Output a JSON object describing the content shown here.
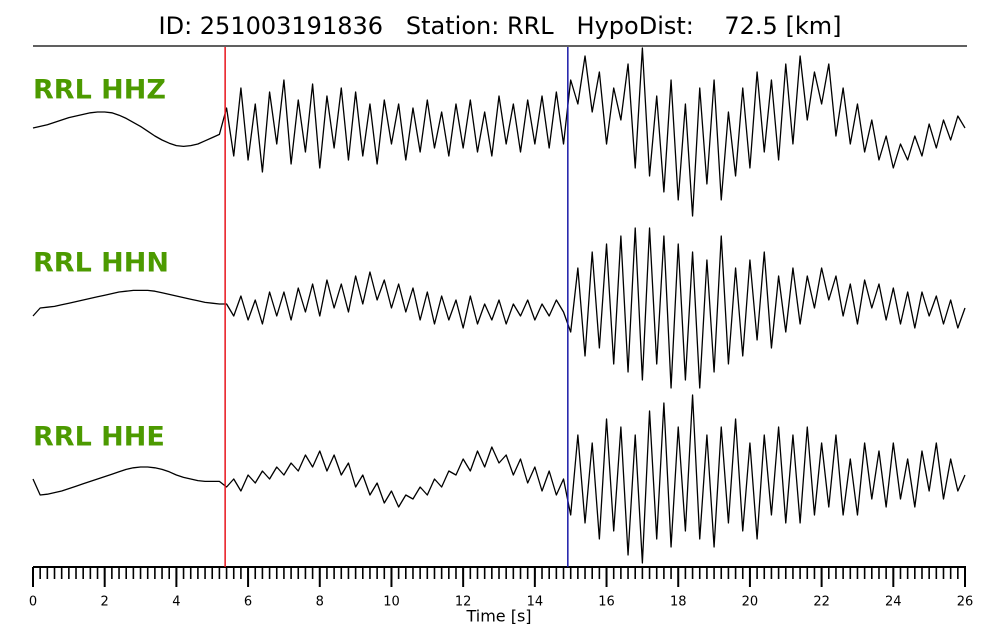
{
  "chart_data": {
    "type": "line",
    "title": "ID: 251003191836   Station: RRL   HypoDist:    72.5 [km]",
    "x_label": "Time [s]",
    "xlim": [
      0,
      26
    ],
    "xticks": [
      0,
      2,
      4,
      6,
      8,
      10,
      12,
      14,
      16,
      18,
      20,
      22,
      24,
      26
    ],
    "xminorticks": [
      0,
      0.2,
      0.4,
      0.6,
      0.8,
      1,
      1.2,
      1.4,
      1.6,
      1.8,
      2,
      2.2,
      2.4,
      2.6,
      2.8,
      3,
      3.2,
      3.4,
      3.6,
      3.8,
      4,
      4.2,
      4.4,
      4.6,
      4.8,
      5,
      5.2,
      5.4,
      5.6,
      5.8,
      6,
      6.2,
      6.4,
      6.6,
      6.8,
      7,
      7.2,
      7.4,
      7.6,
      7.8,
      8,
      8.2,
      8.4,
      8.6,
      8.8,
      9,
      9.2,
      9.4,
      9.6,
      9.8,
      10,
      10.2,
      10.4,
      10.6,
      10.8,
      11,
      11.2,
      11.4,
      11.6,
      11.8,
      12,
      12.2,
      12.4,
      12.6,
      12.8,
      13,
      13.2,
      13.4,
      13.6,
      13.8,
      14,
      14.2,
      14.4,
      14.6,
      14.8,
      15,
      15.2,
      15.4,
      15.6,
      15.8,
      16,
      16.2,
      16.4,
      16.6,
      16.8,
      17,
      17.2,
      17.4,
      17.6,
      17.8,
      18,
      18.2,
      18.4,
      18.6,
      18.8,
      19,
      19.2,
      19.4,
      19.6,
      19.8,
      20,
      20.2,
      20.4,
      20.6,
      20.8,
      21,
      21.2,
      21.4,
      21.6,
      21.8,
      22,
      22.2,
      22.4,
      22.6,
      22.8,
      23,
      23.2,
      23.4,
      23.6,
      23.8,
      24,
      24.2,
      24.4,
      24.6,
      24.8,
      25,
      25.2,
      25.4,
      25.6,
      25.8,
      26
    ],
    "picks": [
      {
        "time": 5.36,
        "color": "#e8141c"
      },
      {
        "time": 14.92,
        "color": "#1a1aa8"
      }
    ],
    "x": [
      0,
      0.2,
      0.4,
      0.6,
      0.8,
      1,
      1.2,
      1.4,
      1.6,
      1.8,
      2,
      2.2,
      2.4,
      2.6,
      2.8,
      3,
      3.2,
      3.4,
      3.6,
      3.8,
      4,
      4.2,
      4.4,
      4.6,
      4.8,
      5,
      5.2,
      5.4,
      5.6,
      5.8,
      6,
      6.2,
      6.4,
      6.6,
      6.8,
      7,
      7.2,
      7.4,
      7.6,
      7.8,
      8,
      8.2,
      8.4,
      8.6,
      8.8,
      9,
      9.2,
      9.4,
      9.6,
      9.8,
      10,
      10.2,
      10.4,
      10.6,
      10.8,
      11,
      11.2,
      11.4,
      11.6,
      11.8,
      12,
      12.2,
      12.4,
      12.6,
      12.8,
      13,
      13.2,
      13.4,
      13.6,
      13.8,
      14,
      14.2,
      14.4,
      14.6,
      14.8,
      15,
      15.2,
      15.4,
      15.6,
      15.8,
      16,
      16.2,
      16.4,
      16.6,
      16.8,
      17,
      17.2,
      17.4,
      17.6,
      17.8,
      18,
      18.2,
      18.4,
      18.6,
      18.8,
      19,
      19.2,
      19.4,
      19.6,
      19.8,
      20,
      20.2,
      20.4,
      20.6,
      20.8,
      21,
      21.2,
      21.4,
      21.6,
      21.8,
      22,
      22.2,
      22.4,
      22.6,
      22.8,
      23,
      23.2,
      23.4,
      23.6,
      23.8,
      24,
      24.2,
      24.4,
      24.6,
      24.8,
      25,
      25.2,
      25.4,
      25.6,
      25.8,
      26
    ],
    "series": [
      {
        "name": "RRL HHZ",
        "color": "#000000",
        "values": [
          0,
          0.02,
          0.04,
          0.07,
          0.1,
          0.13,
          0.15,
          0.17,
          0.19,
          0.2,
          0.2,
          0.19,
          0.16,
          0.12,
          0.07,
          0.02,
          -0.04,
          -0.1,
          -0.15,
          -0.19,
          -0.22,
          -0.23,
          -0.22,
          -0.2,
          -0.16,
          -0.12,
          -0.08,
          0.25,
          -0.35,
          0.5,
          -0.4,
          0.3,
          -0.55,
          0.45,
          -0.2,
          0.6,
          -0.45,
          0.35,
          -0.3,
          0.55,
          -0.5,
          0.4,
          -0.25,
          0.5,
          -0.4,
          0.45,
          -0.35,
          0.3,
          -0.45,
          0.35,
          -0.2,
          0.3,
          -0.4,
          0.25,
          -0.3,
          0.35,
          -0.25,
          0.2,
          -0.35,
          0.3,
          -0.25,
          0.35,
          -0.3,
          0.2,
          -0.35,
          0.4,
          -0.2,
          0.3,
          -0.3,
          0.35,
          -0.2,
          0.4,
          -0.25,
          0.45,
          -0.2,
          0.6,
          0.3,
          0.9,
          0.2,
          0.7,
          -0.2,
          0.5,
          0.1,
          0.8,
          -0.5,
          1.0,
          -0.6,
          0.4,
          -0.8,
          0.6,
          -0.9,
          0.3,
          -1.1,
          0.5,
          -0.7,
          0.6,
          -0.9,
          0.2,
          -0.6,
          0.5,
          -0.5,
          0.7,
          -0.3,
          0.6,
          -0.4,
          0.8,
          -0.2,
          0.9,
          0.1,
          0.7,
          0.3,
          0.8,
          -0.1,
          0.5,
          -0.2,
          0.3,
          -0.3,
          0.1,
          -0.4,
          -0.1,
          -0.5,
          -0.2,
          -0.4,
          -0.1,
          -0.35,
          0.05,
          -0.25,
          0.1,
          -0.15,
          0.15,
          0.0
        ]
      },
      {
        "name": "RRL HHN",
        "color": "#000000",
        "values": [
          -0.1,
          0.0,
          0.01,
          0.02,
          0.04,
          0.06,
          0.08,
          0.1,
          0.12,
          0.14,
          0.16,
          0.18,
          0.2,
          0.21,
          0.22,
          0.22,
          0.22,
          0.21,
          0.19,
          0.17,
          0.15,
          0.13,
          0.11,
          0.09,
          0.07,
          0.06,
          0.05,
          0.05,
          -0.1,
          0.15,
          -0.15,
          0.1,
          -0.2,
          0.2,
          -0.1,
          0.2,
          -0.15,
          0.25,
          -0.05,
          0.3,
          -0.1,
          0.35,
          0.0,
          0.3,
          -0.05,
          0.4,
          0.05,
          0.45,
          0.1,
          0.35,
          0.0,
          0.3,
          -0.05,
          0.25,
          -0.15,
          0.2,
          -0.2,
          0.15,
          -0.15,
          0.1,
          -0.25,
          0.15,
          -0.2,
          0.05,
          -0.15,
          0.1,
          -0.2,
          0.05,
          -0.1,
          0.1,
          -0.15,
          0.05,
          -0.1,
          0.1,
          -0.05,
          -0.3,
          0.5,
          -0.6,
          0.7,
          -0.5,
          0.8,
          -0.7,
          0.9,
          -0.8,
          1.0,
          -0.9,
          1.0,
          -0.7,
          0.9,
          -1.0,
          0.8,
          -0.9,
          0.7,
          -1.0,
          0.6,
          -0.8,
          0.9,
          -0.7,
          0.5,
          -0.6,
          0.6,
          -0.4,
          0.7,
          -0.5,
          0.4,
          -0.3,
          0.5,
          -0.2,
          0.4,
          0.0,
          0.5,
          0.1,
          0.4,
          -0.1,
          0.3,
          -0.2,
          0.35,
          0.0,
          0.3,
          -0.15,
          0.25,
          -0.2,
          0.2,
          -0.25,
          0.2,
          -0.1,
          0.15,
          -0.2,
          0.1,
          -0.25,
          0.0
        ]
      },
      {
        "name": "RRL HHE",
        "color": "#000000",
        "values": [
          0.05,
          -0.15,
          -0.14,
          -0.12,
          -0.1,
          -0.07,
          -0.04,
          -0.01,
          0.02,
          0.05,
          0.08,
          0.11,
          0.14,
          0.17,
          0.19,
          0.2,
          0.2,
          0.19,
          0.17,
          0.14,
          0.1,
          0.07,
          0.05,
          0.03,
          0.02,
          0.02,
          0.02,
          -0.05,
          0.05,
          -0.1,
          0.1,
          0.0,
          0.15,
          0.05,
          0.2,
          0.1,
          0.25,
          0.15,
          0.35,
          0.2,
          0.4,
          0.15,
          0.35,
          0.1,
          0.25,
          -0.05,
          0.1,
          -0.15,
          0.0,
          -0.25,
          -0.1,
          -0.3,
          -0.15,
          -0.2,
          -0.05,
          -0.15,
          0.05,
          -0.05,
          0.15,
          0.1,
          0.3,
          0.15,
          0.4,
          0.2,
          0.45,
          0.25,
          0.35,
          0.1,
          0.3,
          0.0,
          0.2,
          -0.1,
          0.15,
          -0.15,
          0.05,
          -0.4,
          0.6,
          -0.5,
          0.5,
          -0.7,
          0.8,
          -0.6,
          0.7,
          -0.9,
          0.6,
          -1.0,
          0.9,
          -0.7,
          1.0,
          -0.8,
          0.7,
          -0.6,
          1.1,
          -0.7,
          0.6,
          -0.8,
          0.7,
          -0.5,
          0.8,
          -0.6,
          0.5,
          -0.7,
          0.6,
          -0.4,
          0.7,
          -0.5,
          0.6,
          -0.5,
          0.7,
          -0.4,
          0.5,
          -0.3,
          0.6,
          -0.4,
          0.3,
          -0.4,
          0.5,
          -0.2,
          0.4,
          -0.3,
          0.5,
          -0.2,
          0.3,
          -0.3,
          0.4,
          -0.1,
          0.5,
          -0.2,
          0.3,
          -0.1,
          0.1
        ]
      }
    ]
  }
}
